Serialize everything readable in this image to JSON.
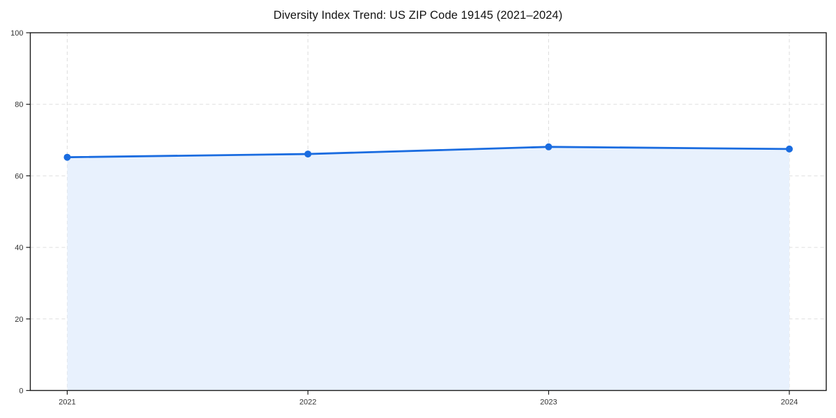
{
  "chart_data": {
    "type": "area",
    "title": "Diversity Index Trend: US ZIP Code 19145 (2021–2024)",
    "x": [
      "2021",
      "2022",
      "2023",
      "2024"
    ],
    "series": [
      {
        "name": "Diversity Index",
        "values": [
          65.2,
          66.1,
          68.1,
          67.5
        ]
      }
    ],
    "xlabel": "",
    "ylabel": "",
    "ylim": [
      0,
      100
    ],
    "yticks": [
      0,
      20,
      40,
      60,
      80,
      100
    ],
    "grid": true,
    "grid_style": "dashed",
    "legend_position": "none",
    "markers": "circle",
    "colors": {
      "line": "#1a6ce0",
      "marker": "#1a6ce0",
      "fill": "#e8f1fd",
      "grid": "#d9d9d9",
      "spine": "#1a1a1a",
      "tick_label": "#333333",
      "title": "#111111",
      "background": "#ffffff"
    }
  }
}
